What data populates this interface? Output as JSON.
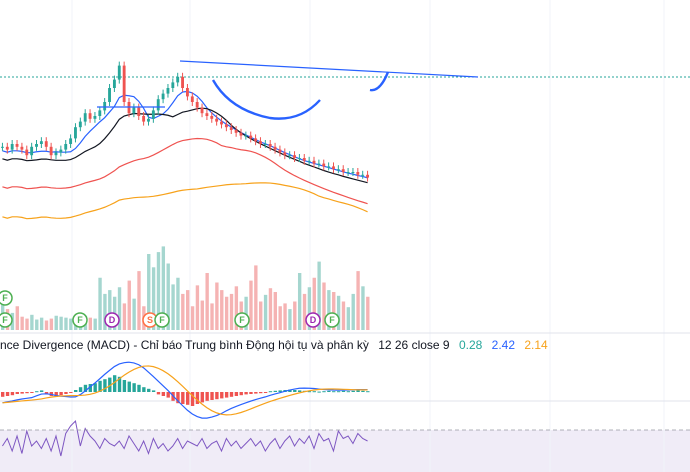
{
  "indicator": {
    "label": "nce Divergence (MACD) - Chỉ báo Trung bình Động hội tụ và phân kỳ",
    "params": "12 26 close 9",
    "histogram_value": "0.28",
    "macd_value": "2.42",
    "signal_value": "2.14",
    "colors": {
      "histogram": "#26a69a",
      "macd": "#2962ff",
      "signal": "#f7a21b"
    }
  },
  "chart_data": {
    "type": "candlestick",
    "x_index": [
      0,
      1,
      2,
      3,
      4,
      5,
      6,
      7,
      8,
      9,
      10,
      11,
      12,
      13,
      14,
      15,
      16,
      17,
      18,
      19,
      20,
      21,
      22,
      23,
      24,
      25,
      26,
      27,
      28,
      29,
      30,
      31,
      32,
      33,
      34,
      35,
      36,
      37,
      38,
      39,
      40,
      41,
      42,
      43,
      44,
      45,
      46,
      47,
      48,
      49,
      50,
      51,
      52,
      53,
      54,
      55,
      56,
      57,
      58,
      59,
      60,
      61,
      62,
      63,
      64,
      65,
      66,
      67,
      68,
      69,
      70,
      71,
      72,
      73,
      74,
      75
    ],
    "close_approx": [
      189,
      188,
      190,
      189,
      188,
      186,
      189,
      190,
      191,
      189,
      186,
      187,
      188,
      190,
      192,
      196,
      198,
      201,
      199,
      200,
      202,
      205,
      210,
      213,
      218,
      205,
      201,
      203,
      200,
      198,
      199,
      202,
      206,
      208,
      210,
      212,
      214,
      210,
      207,
      205,
      203,
      201,
      200,
      199,
      198,
      197,
      196,
      195,
      194,
      193,
      193,
      192,
      191,
      190,
      190,
      189,
      188,
      187,
      186,
      186,
      185,
      185,
      184,
      184,
      183,
      183,
      182,
      182,
      181,
      181,
      180,
      180,
      180,
      179,
      179,
      178
    ],
    "volume_relative": [
      0.28,
      0.22,
      0.18,
      0.25,
      0.14,
      0.12,
      0.16,
      0.11,
      0.13,
      0.1,
      0.12,
      0.15,
      0.14,
      0.13,
      0.12,
      0.1,
      0.11,
      0.15,
      0.13,
      0.12,
      0.55,
      0.38,
      0.42,
      0.35,
      0.45,
      0.28,
      0.52,
      0.33,
      0.62,
      0.25,
      0.8,
      0.66,
      0.82,
      0.88,
      0.7,
      0.48,
      0.55,
      0.38,
      0.42,
      0.25,
      0.47,
      0.31,
      0.6,
      0.28,
      0.5,
      0.42,
      0.35,
      0.38,
      0.46,
      0.3,
      0.35,
      0.52,
      0.68,
      0.3,
      0.37,
      0.44,
      0.4,
      0.25,
      0.28,
      0.22,
      0.3,
      0.6,
      0.38,
      0.45,
      0.55,
      0.72,
      0.5,
      0.42,
      0.4,
      0.36,
      0.3,
      0.24,
      0.38,
      0.62,
      0.46,
      0.35
    ],
    "macd_hist_relative": [
      -0.12,
      -0.1,
      -0.08,
      -0.05,
      -0.04,
      -0.03,
      -0.02,
      0.02,
      0.04,
      -0.06,
      -0.1,
      -0.12,
      -0.08,
      -0.05,
      -0.02,
      0.05,
      0.12,
      0.18,
      0.2,
      0.22,
      0.28,
      0.32,
      0.36,
      0.42,
      0.38,
      0.3,
      0.26,
      0.22,
      0.18,
      0.12,
      0.08,
      0.04,
      -0.06,
      -0.1,
      -0.14,
      -0.22,
      -0.28,
      -0.3,
      -0.32,
      -0.35,
      -0.3,
      -0.26,
      -0.22,
      -0.2,
      -0.18,
      -0.16,
      -0.14,
      -0.12,
      -0.1,
      -0.08,
      -0.06,
      -0.05,
      -0.04,
      -0.03,
      -0.02,
      0.02,
      0.03,
      0.04,
      0.05,
      0.06,
      0.05,
      0.04,
      0.03,
      0.02,
      0.02,
      0.01,
      0.02,
      0.03,
      0.02,
      0.02,
      0.03,
      0.02,
      0.03,
      0.04,
      0.03,
      0.02
    ],
    "rsi_relative": [
      0.4,
      0.55,
      0.3,
      0.6,
      0.25,
      0.7,
      0.4,
      0.5,
      0.35,
      0.55,
      0.3,
      0.6,
      0.2,
      0.65,
      0.8,
      0.9,
      0.4,
      0.75,
      0.6,
      0.5,
      0.35,
      0.55,
      0.45,
      0.4,
      0.5,
      0.35,
      0.6,
      0.45,
      0.3,
      0.5,
      0.25,
      0.55,
      0.35,
      0.45,
      0.3,
      0.4,
      0.55,
      0.35,
      0.5,
      0.45,
      0.4,
      0.55,
      0.35,
      0.45,
      0.5,
      0.3,
      0.55,
      0.4,
      0.5,
      0.35,
      0.45,
      0.55,
      0.4,
      0.5,
      0.3,
      0.45,
      0.55,
      0.35,
      0.5,
      0.6,
      0.4,
      0.55,
      0.45,
      0.6,
      0.35,
      0.65,
      0.5,
      0.55,
      0.3,
      0.7,
      0.55,
      0.6,
      0.45,
      0.65,
      0.55,
      0.5
    ],
    "event_markers": [
      "F",
      "F",
      "F",
      "D",
      "S",
      "F",
      "F",
      "D",
      "F"
    ],
    "grid": true
  }
}
